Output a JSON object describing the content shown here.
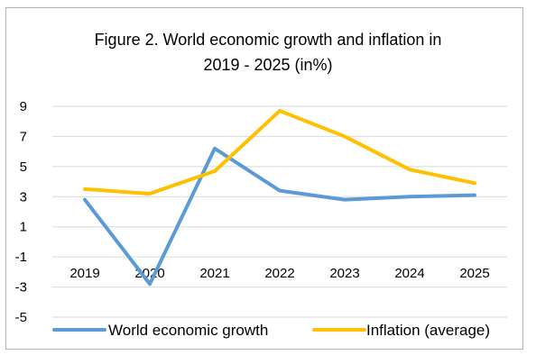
{
  "chart_data": {
    "type": "line",
    "title_line1": "Figure 2. World economic growth and inflation in",
    "title_line2": "2019 - 2025 (in%)",
    "categories": [
      "2019",
      "2020",
      "2021",
      "2022",
      "2023",
      "2024",
      "2025"
    ],
    "series": [
      {
        "name": "World economic growth",
        "color": "#5b9bd5",
        "values": [
          2.8,
          -2.8,
          6.2,
          3.4,
          2.8,
          3.0,
          3.1
        ]
      },
      {
        "name": "Inflation (average)",
        "color": "#ffc000",
        "values": [
          3.5,
          3.2,
          4.7,
          8.7,
          7.0,
          4.8,
          3.9
        ]
      }
    ],
    "y_ticks": [
      "9",
      "7",
      "5",
      "3",
      "1",
      "-1",
      "-3",
      "-5"
    ],
    "ylim": [
      -5,
      9
    ],
    "grid": true,
    "legend_position": "bottom"
  }
}
